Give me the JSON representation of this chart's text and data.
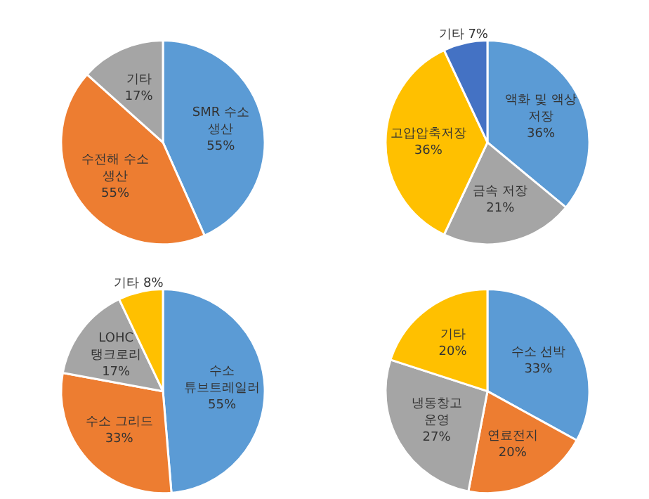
{
  "chart_data": [
    {
      "type": "pie",
      "categories": [
        "SMR 수소 생산",
        "수전해 수소 생산",
        "기타"
      ],
      "values": [
        55,
        55,
        17
      ],
      "colors": [
        "#5b9bd5",
        "#ed7d31",
        "#a5a5a5"
      ],
      "value_labels": [
        "55%",
        "55%",
        "17%"
      ]
    },
    {
      "type": "pie",
      "categories": [
        "액화 및 액상 저장",
        "금속 저장",
        "고압압축저장",
        "기타"
      ],
      "values": [
        36,
        21,
        36,
        7
      ],
      "colors": [
        "#5b9bd5",
        "#a5a5a5",
        "#ffc000",
        "#4472c4"
      ],
      "value_labels": [
        "36%",
        "21%",
        "36%",
        "7%"
      ]
    },
    {
      "type": "pie",
      "categories": [
        "수소 튜브트레일러",
        "수소 그리드",
        "LOHC 탱크로리",
        "기타"
      ],
      "values": [
        55,
        33,
        17,
        8
      ],
      "colors": [
        "#5b9bd5",
        "#ed7d31",
        "#a5a5a5",
        "#ffc000"
      ],
      "value_labels": [
        "55%",
        "33%",
        "17%",
        "8%"
      ]
    },
    {
      "type": "pie",
      "categories": [
        "수소 선박",
        "연료전지",
        "냉동창고 운영",
        "기타"
      ],
      "values": [
        33,
        20,
        27,
        20
      ],
      "colors": [
        "#5b9bd5",
        "#ed7d31",
        "#a5a5a5",
        "#ffc000"
      ],
      "value_labels": [
        "33%",
        "20%",
        "27%",
        "20%"
      ]
    }
  ]
}
